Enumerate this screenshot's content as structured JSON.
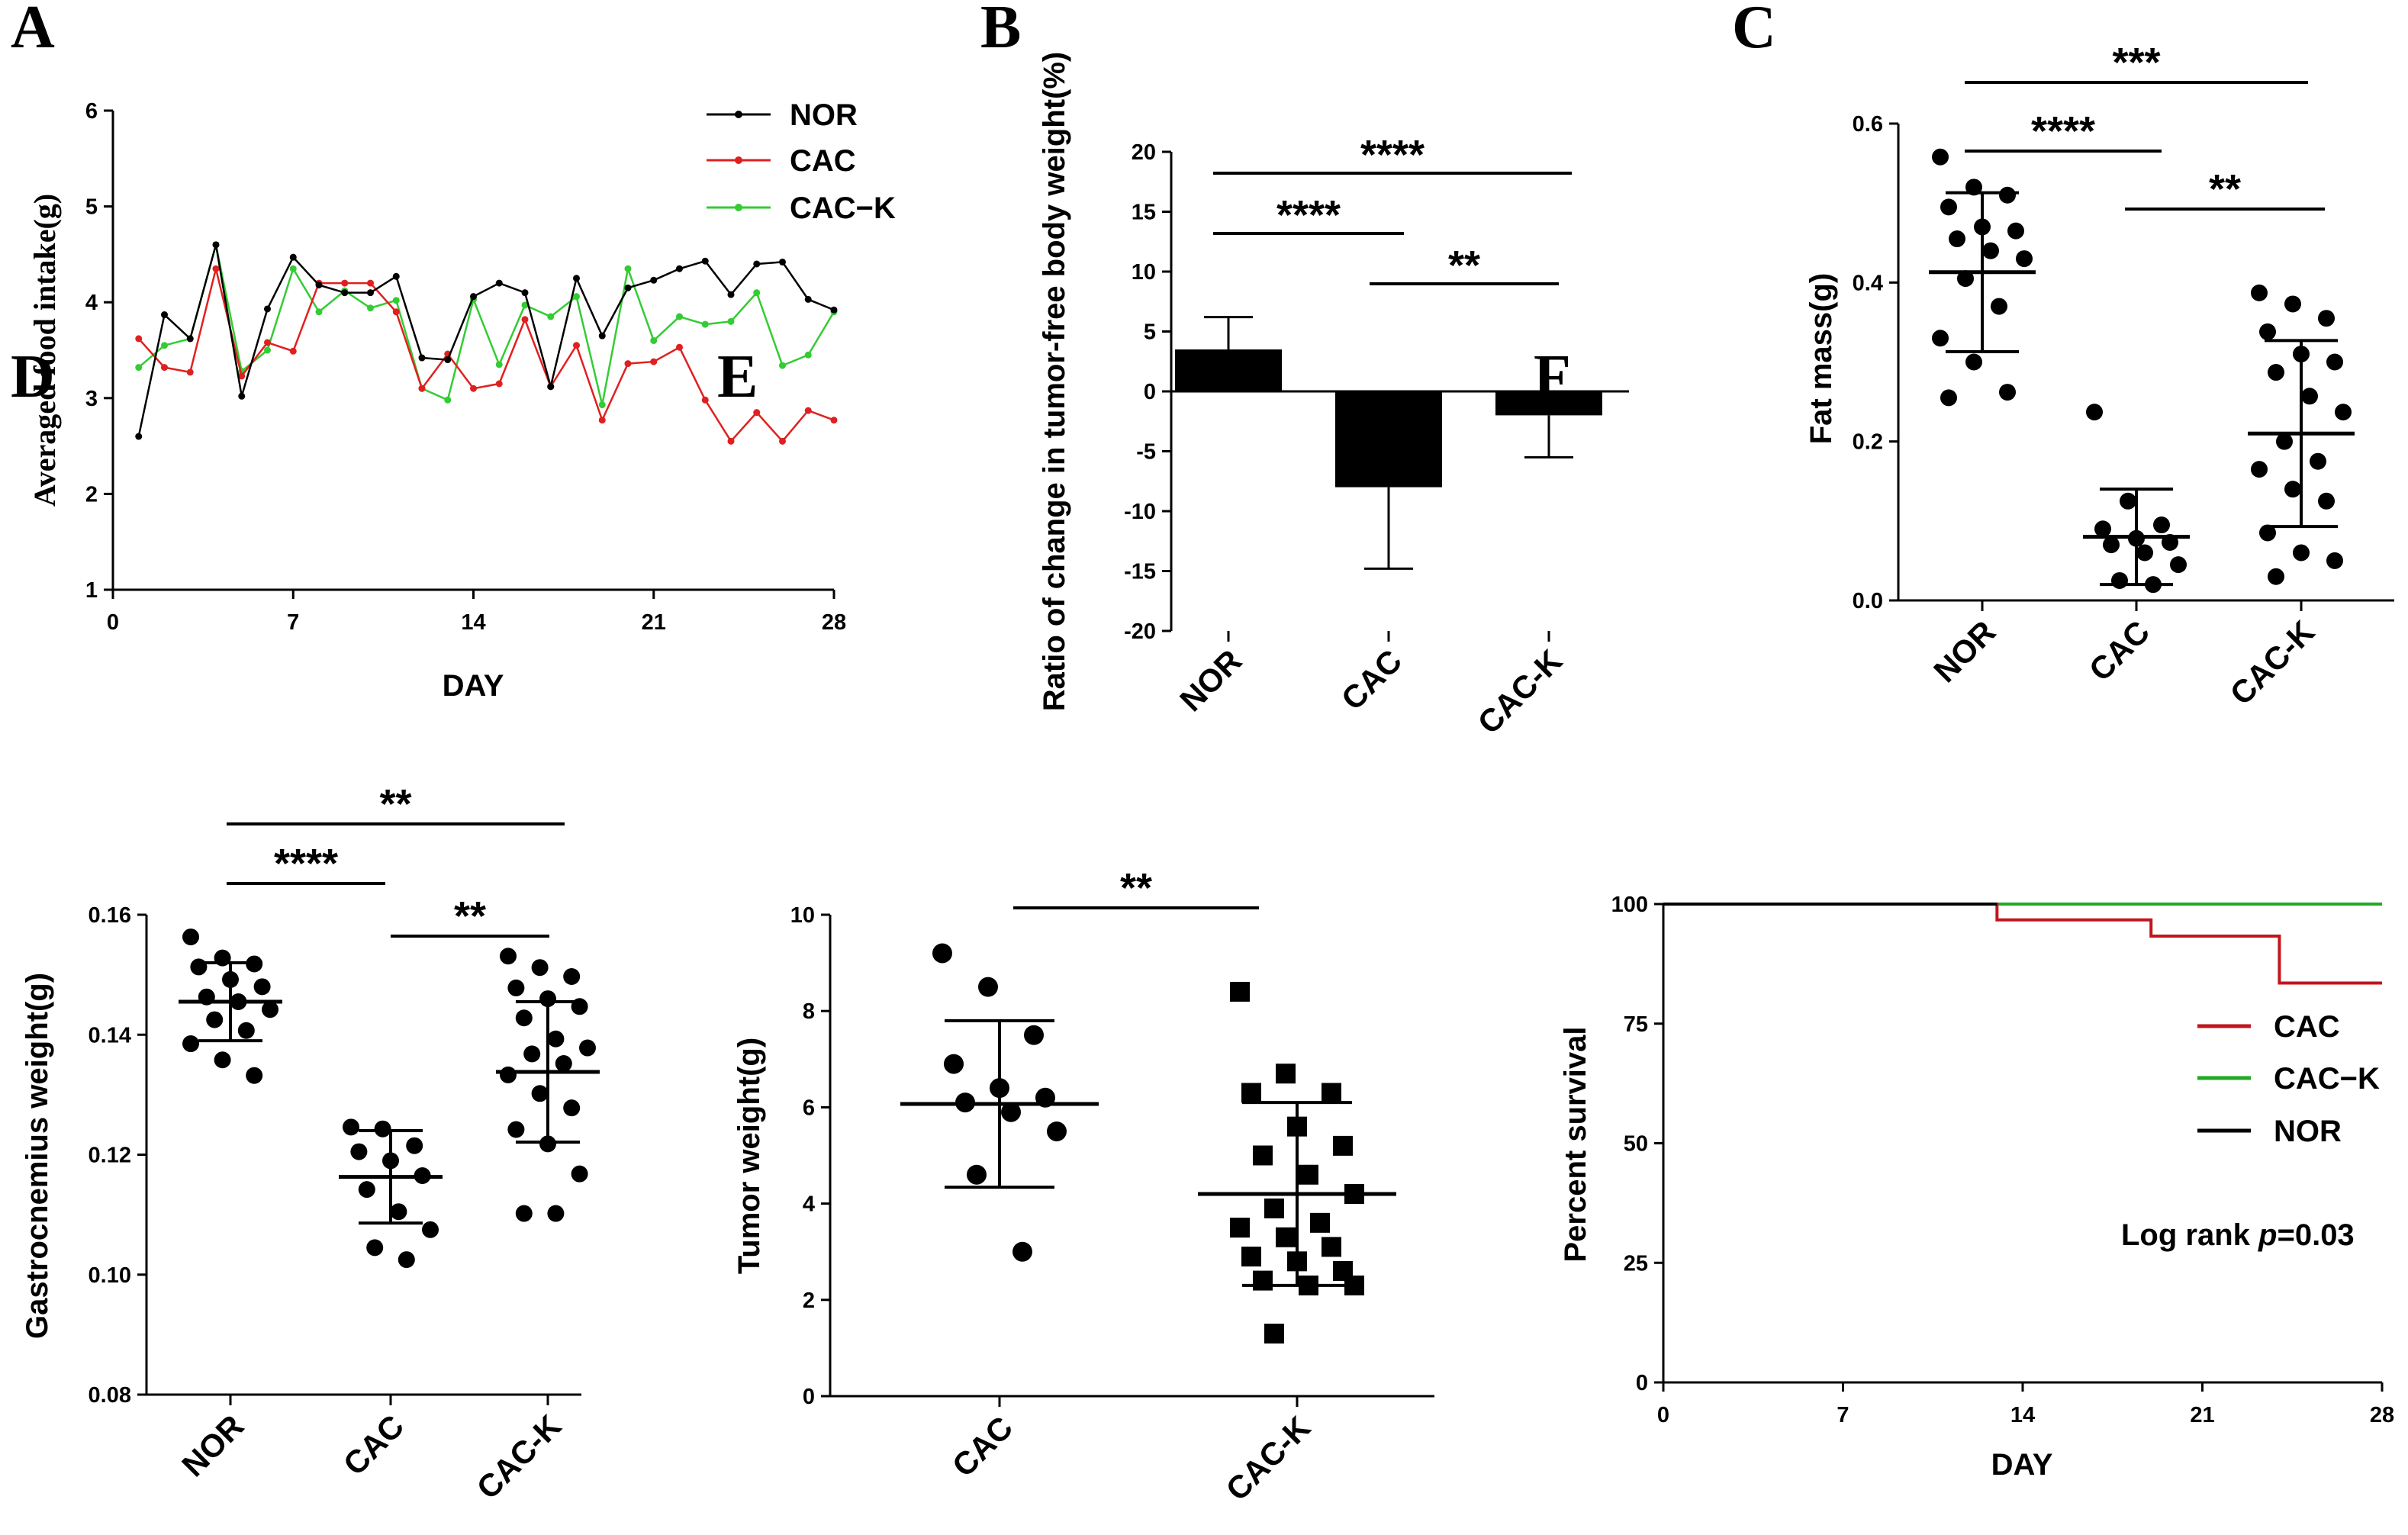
{
  "panels": {
    "A": "A",
    "B": "B",
    "C": "C",
    "D": "D",
    "E": "E",
    "F": "F"
  },
  "colors": {
    "NOR": "#000000",
    "CAC": "#e02020",
    "CAC-K": "#33cc33",
    "CAC_survival": "#c0161c",
    "CAC-K_survival": "#22aa22",
    "bars": "#000000",
    "points": "#000000"
  },
  "chart_data": [
    {
      "panel": "A",
      "type": "line",
      "xlabel": "DAY",
      "ylabel": "Averaged food intake(g)",
      "xlim": [
        0,
        28
      ],
      "ylim": [
        1,
        6
      ],
      "xticks": [
        0,
        7,
        14,
        21,
        28
      ],
      "yticks": [
        1,
        2,
        3,
        4,
        5,
        6
      ],
      "x": [
        1,
        2,
        3,
        4,
        5,
        6,
        7,
        8,
        9,
        10,
        11,
        12,
        13,
        14,
        15,
        16,
        17,
        18,
        19,
        20,
        21,
        22,
        23,
        24,
        25,
        26,
        27,
        28
      ],
      "series": [
        {
          "name": "NOR",
          "values": [
            2.6,
            3.87,
            3.62,
            4.6,
            3.02,
            3.93,
            4.47,
            4.18,
            4.1,
            4.1,
            4.27,
            3.42,
            3.4,
            4.06,
            4.2,
            4.1,
            3.12,
            4.25,
            3.65,
            4.15,
            4.23,
            4.35,
            4.43,
            4.08,
            4.4,
            4.42,
            4.03,
            3.92
          ]
        },
        {
          "name": "CAC",
          "values": [
            3.62,
            3.32,
            3.27,
            4.35,
            3.23,
            3.58,
            3.49,
            4.2,
            4.2,
            4.2,
            3.9,
            3.1,
            3.46,
            3.1,
            3.15,
            3.82,
            3.12,
            3.55,
            2.77,
            3.36,
            3.38,
            3.53,
            2.98,
            2.55,
            2.85,
            2.55,
            2.87,
            2.77
          ]
        },
        {
          "name": "CAC−K",
          "values": [
            3.32,
            3.55,
            3.62,
            4.6,
            3.28,
            3.5,
            4.35,
            3.9,
            4.12,
            3.94,
            4.02,
            3.1,
            2.98,
            4.03,
            3.35,
            3.97,
            3.85,
            4.06,
            2.93,
            4.35,
            3.6,
            3.85,
            3.77,
            3.8,
            4.1,
            3.34,
            3.45,
            3.9
          ]
        }
      ]
    },
    {
      "panel": "B",
      "type": "bar",
      "ylabel": "Ratio of change in tumor-free body weight(%)",
      "categories": [
        "NOR",
        "CAC",
        "CAC-K"
      ],
      "values": [
        3.5,
        -8.0,
        -2.0
      ],
      "errors": [
        2.7,
        6.8,
        3.5
      ],
      "ylim": [
        -20,
        20
      ],
      "yticks": [
        -20,
        -15,
        -10,
        -5,
        0,
        5,
        10,
        15,
        20
      ],
      "significance": [
        {
          "from": "NOR",
          "to": "CAC-K",
          "label": "****"
        },
        {
          "from": "NOR",
          "to": "CAC",
          "label": "****"
        },
        {
          "from": "CAC",
          "to": "CAC-K",
          "label": "**"
        }
      ]
    },
    {
      "panel": "C",
      "type": "scatter",
      "ylabel": "Fat mass(g)",
      "categories": [
        "NOR",
        "CAC",
        "CAC-K"
      ],
      "ylim": [
        0,
        0.6
      ],
      "yticks": [
        0.0,
        0.2,
        0.4,
        0.6
      ],
      "ytick_labels": [
        "0.0",
        "0.2",
        "0.4",
        "0.6"
      ],
      "groups": [
        {
          "name": "NOR",
          "mean": 0.413,
          "sd": 0.1,
          "points": [
            0.558,
            0.52,
            0.51,
            0.495,
            0.47,
            0.465,
            0.455,
            0.44,
            0.43,
            0.405,
            0.37,
            0.33,
            0.3,
            0.262,
            0.255
          ]
        },
        {
          "name": "CAC",
          "mean": 0.08,
          "sd": 0.06,
          "points": [
            0.237,
            0.125,
            0.095,
            0.09,
            0.078,
            0.073,
            0.07,
            0.06,
            0.045,
            0.025,
            0.02
          ]
        },
        {
          "name": "CAC-K",
          "mean": 0.21,
          "sd": 0.117,
          "points": [
            0.387,
            0.373,
            0.355,
            0.338,
            0.31,
            0.3,
            0.287,
            0.257,
            0.237,
            0.2,
            0.175,
            0.165,
            0.14,
            0.125,
            0.085,
            0.06,
            0.05,
            0.03
          ]
        }
      ],
      "significance": [
        {
          "from": "NOR",
          "to": "CAC-K",
          "label": "***"
        },
        {
          "from": "NOR",
          "to": "CAC",
          "label": "****"
        },
        {
          "from": "CAC",
          "to": "CAC-K",
          "label": "**"
        }
      ]
    },
    {
      "panel": "D",
      "type": "scatter",
      "ylabel": "Gastrocnemius weight(g)",
      "categories": [
        "NOR",
        "CAC",
        "CAC-K"
      ],
      "ylim": [
        0.08,
        0.16
      ],
      "yticks": [
        0.08,
        0.1,
        0.12,
        0.14,
        0.16
      ],
      "ytick_labels": [
        "0.08",
        "0.10",
        "0.12",
        "0.14",
        "0.16"
      ],
      "groups": [
        {
          "name": "NOR",
          "mean": 0.1455,
          "sd": 0.0065,
          "points": [
            0.1563,
            0.1528,
            0.1518,
            0.1513,
            0.1492,
            0.148,
            0.1463,
            0.1455,
            0.1442,
            0.1425,
            0.1407,
            0.1385,
            0.1358,
            0.1332
          ]
        },
        {
          "name": "CAC",
          "mean": 0.1163,
          "sd": 0.0077,
          "points": [
            0.1246,
            0.1243,
            0.1215,
            0.1205,
            0.119,
            0.1165,
            0.1142,
            0.1105,
            0.1075,
            0.1045,
            0.1025
          ]
        },
        {
          "name": "CAC-K",
          "mean": 0.1338,
          "sd": 0.0117,
          "points": [
            0.1531,
            0.1512,
            0.1497,
            0.1478,
            0.146,
            0.1447,
            0.1428,
            0.1393,
            0.1378,
            0.1368,
            0.1352,
            0.1333,
            0.1302,
            0.1278,
            0.1242,
            0.1218,
            0.1168,
            0.1102,
            0.1102
          ]
        }
      ],
      "significance": [
        {
          "from": "NOR",
          "to": "CAC-K",
          "label": "**"
        },
        {
          "from": "NOR",
          "to": "CAC",
          "label": "****"
        },
        {
          "from": "CAC",
          "to": "CAC-K",
          "label": "**"
        }
      ]
    },
    {
      "panel": "E",
      "type": "scatter",
      "ylabel": "Tumor weight(g)",
      "categories": [
        "CAC",
        "CAC-K"
      ],
      "ylim": [
        0,
        10
      ],
      "yticks": [
        0,
        2,
        4,
        6,
        8,
        10
      ],
      "groups": [
        {
          "name": "CAC",
          "mean": 6.07,
          "sd": 1.73,
          "marker": "circle",
          "points": [
            9.2,
            8.5,
            7.5,
            6.9,
            6.4,
            6.2,
            6.1,
            5.9,
            5.5,
            4.6,
            3.0
          ]
        },
        {
          "name": "CAC-K",
          "mean": 4.2,
          "sd": 1.9,
          "marker": "square",
          "points": [
            8.4,
            6.7,
            6.3,
            6.3,
            5.6,
            5.2,
            5.0,
            4.6,
            4.2,
            3.9,
            3.6,
            3.5,
            3.3,
            3.1,
            2.9,
            2.8,
            2.6,
            2.4,
            2.3,
            2.3,
            1.3
          ]
        }
      ],
      "significance": [
        {
          "from": "CAC",
          "to": "CAC-K",
          "label": "**"
        }
      ]
    },
    {
      "panel": "F",
      "type": "line",
      "title": "",
      "xlabel": "DAY",
      "ylabel": "Percent survival",
      "xlim": [
        0,
        28
      ],
      "ylim": [
        0,
        100
      ],
      "xticks": [
        0,
        7,
        14,
        21,
        28
      ],
      "yticks": [
        0,
        25,
        50,
        75,
        100
      ],
      "series": [
        {
          "name": "CAC",
          "step": true,
          "x": [
            0,
            13,
            13,
            19,
            19,
            24,
            24,
            28
          ],
          "values": [
            100,
            100,
            96.7,
            96.7,
            93.3,
            93.3,
            83.5,
            83.5
          ]
        },
        {
          "name": "CAC−K",
          "step": true,
          "x": [
            0,
            28
          ],
          "values": [
            100,
            100
          ]
        },
        {
          "name": "NOR",
          "step": true,
          "x": [
            0,
            13
          ],
          "values": [
            100,
            100
          ]
        }
      ],
      "annotation": {
        "prefix": "Log rank ",
        "p": "p",
        "suffix": "=0.03"
      }
    }
  ]
}
